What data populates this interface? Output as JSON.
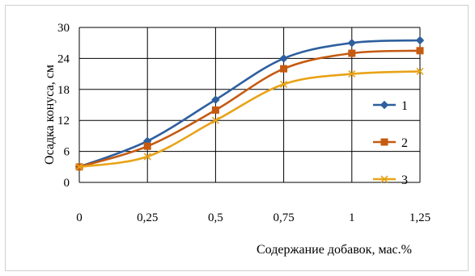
{
  "chart_data": {
    "type": "line",
    "x": [
      "0",
      "0,25",
      "0,5",
      "0,75",
      "1",
      "1,25"
    ],
    "x_values": [
      0,
      0.25,
      0.5,
      0.75,
      1,
      1.25
    ],
    "xlabel": "Содержание добавок, мас.%",
    "ylabel": "Осадка конуса,  см",
    "ylim": [
      0,
      30
    ],
    "yticks": [
      "0",
      "6",
      "12",
      "18",
      "24",
      "30"
    ],
    "grid": true,
    "legend_position": "right",
    "series": [
      {
        "name": "1",
        "color": "#2e5f9e",
        "marker": "diamond",
        "values": [
          3,
          8,
          16,
          24,
          27,
          27.5
        ]
      },
      {
        "name": "2",
        "color": "#c55a11",
        "marker": "square",
        "values": [
          3,
          7,
          14,
          22,
          25,
          25.5
        ]
      },
      {
        "name": "3",
        "color": "#e8a317",
        "marker": "x",
        "values": [
          3,
          5,
          12,
          19,
          21,
          21.5
        ]
      }
    ]
  }
}
